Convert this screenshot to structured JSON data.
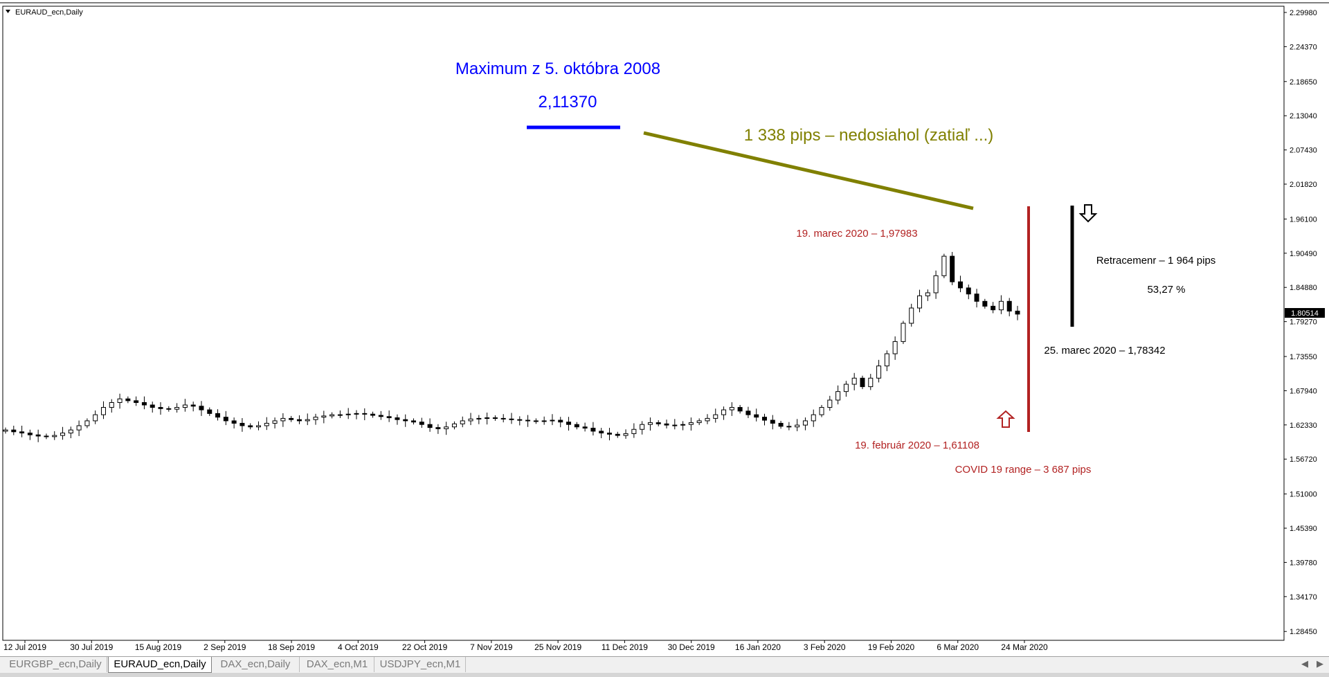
{
  "window": {
    "symbol_label": "EURAUD_ecn,Daily",
    "current_price": "1.80514"
  },
  "tabs": [
    {
      "label": "EURGBP_ecn,Daily",
      "active": false
    },
    {
      "label": "EURAUD_ecn,Daily",
      "active": true
    },
    {
      "label": "DAX_ecn,Daily",
      "active": false
    },
    {
      "label": "DAX_ecn,M1",
      "active": false
    },
    {
      "label": "USDJPY_ecn,M1",
      "active": false
    }
  ],
  "annotations": {
    "max_title": "Maximum z 5. októbra 2008",
    "max_value": "2,11370",
    "pips_not_reached": "1 338 pips – nedosiahol (zatiaľ ...)",
    "peak_label": "19. marec 2020  – 1,97983",
    "low_label": "19. február 2020 – 1,61108",
    "covid_range": "COVID 19 range – 3 687 pips",
    "retracement": "Retracemenr – 1 964 pips",
    "retracement_pct": "53,27 %",
    "retracement_low": "25. marec 2020 – 1,78342"
  },
  "colors": {
    "blue": "#0000ff",
    "olive": "#808000",
    "red": "#b22222",
    "black": "#000000"
  },
  "chart_data": {
    "type": "candlestick",
    "symbol": "EURAUD_ecn",
    "timeframe": "Daily",
    "y_ticks": [
      "2.29980",
      "2.24370",
      "2.18650",
      "2.13040",
      "2.07430",
      "2.01820",
      "1.96100",
      "1.90490",
      "1.84880",
      "1.79270",
      "1.73550",
      "1.67940",
      "1.62330",
      "1.56720",
      "1.51000",
      "1.45390",
      "1.39780",
      "1.34170",
      "1.28450"
    ],
    "ylim": [
      1.27,
      2.31
    ],
    "x_labels": [
      "12 Jul 2019",
      "30 Jul 2019",
      "15 Aug 2019",
      "2 Sep 2019",
      "18 Sep 2019",
      "4 Oct 2019",
      "22 Oct 2019",
      "7 Nov 2019",
      "25 Nov 2019",
      "11 Dec 2019",
      "30 Dec 2019",
      "16 Jan 2020",
      "3 Feb 2020",
      "19 Feb 2020",
      "6 Mar 2020",
      "24 Mar 2020"
    ],
    "close_series": [
      1.615,
      1.612,
      1.61,
      1.607,
      1.605,
      1.604,
      1.606,
      1.61,
      1.615,
      1.622,
      1.63,
      1.64,
      1.652,
      1.66,
      1.666,
      1.663,
      1.66,
      1.656,
      1.652,
      1.65,
      1.649,
      1.652,
      1.656,
      1.654,
      1.648,
      1.642,
      1.636,
      1.63,
      1.626,
      1.622,
      1.62,
      1.622,
      1.626,
      1.63,
      1.634,
      1.632,
      1.63,
      1.632,
      1.636,
      1.638,
      1.64,
      1.64,
      1.641,
      1.642,
      1.641,
      1.639,
      1.637,
      1.635,
      1.632,
      1.63,
      1.628,
      1.624,
      1.619,
      1.617,
      1.62,
      1.625,
      1.63,
      1.633,
      1.634,
      1.635,
      1.634,
      1.633,
      1.632,
      1.631,
      1.63,
      1.629,
      1.63,
      1.631,
      1.628,
      1.624,
      1.62,
      1.618,
      1.613,
      1.61,
      1.608,
      1.606,
      1.609,
      1.616,
      1.624,
      1.627,
      1.625,
      1.623,
      1.623,
      1.624,
      1.627,
      1.63,
      1.634,
      1.64,
      1.648,
      1.652,
      1.646,
      1.64,
      1.636,
      1.631,
      1.626,
      1.621,
      1.62,
      1.623,
      1.63,
      1.64,
      1.652,
      1.664,
      1.678,
      1.69,
      1.7,
      1.686,
      1.7,
      1.72,
      1.74,
      1.76,
      1.79,
      1.815,
      1.835,
      1.84,
      1.868,
      1.9,
      1.858,
      1.848,
      1.838,
      1.826,
      1.818,
      1.812,
      1.826,
      1.81,
      1.805
    ],
    "annotated_values": {
      "max_2008": 2.1137,
      "peak_2020_03_19": 1.97983,
      "low_2020_02_19": 1.61108,
      "low_2020_03_25": 1.78342,
      "covid_range_pips": 3687,
      "retracement_pips": 1964,
      "retracement_pct": 53.27,
      "not_reached_pips": 1338
    }
  }
}
